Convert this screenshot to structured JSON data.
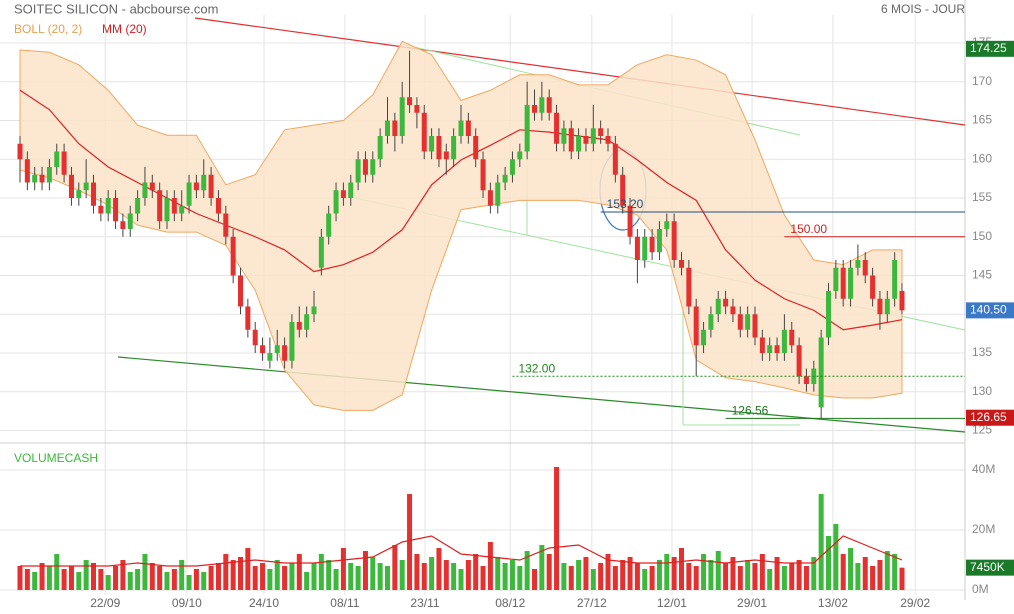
{
  "chart_data": {
    "type": "candlestick",
    "title": "SOITEC SILICON - abcbourse.com",
    "period": "6 MOIS - JOUR",
    "indicator_labels": [
      "BOLL (20, 2)",
      "MM (20)"
    ],
    "volume_title": "VOLUMECASH",
    "colors": {
      "up": "#3cb83c",
      "down": "#e53030",
      "band": "#fbe3c8",
      "band_edge": "#f0a860",
      "ma": "#e02020"
    },
    "ylim": [
      125,
      175
    ],
    "yticks": [
      125,
      130,
      135,
      140,
      145,
      150,
      155,
      160,
      165,
      170,
      175
    ],
    "xticks": [
      {
        "value": 11.6,
        "label": "22/09"
      },
      {
        "value": 22.7,
        "label": "09/10"
      },
      {
        "value": 33.2,
        "label": "24/10"
      },
      {
        "value": 44.2,
        "label": "08/11"
      },
      {
        "value": 55.1,
        "label": "23/11"
      },
      {
        "value": 66.7,
        "label": "08/12"
      },
      {
        "value": 77.8,
        "label": "27/12"
      },
      {
        "value": 88.7,
        "label": "12/01"
      },
      {
        "value": 99.6,
        "label": "29/01"
      },
      {
        "value": 110.6,
        "label": "13/02"
      },
      {
        "value": 121.8,
        "label": "29/02"
      }
    ],
    "ohlc": [
      [
        162,
        163,
        157,
        160
      ],
      [
        160,
        161,
        156,
        157
      ],
      [
        157,
        159,
        156,
        158
      ],
      [
        158,
        159,
        156,
        157
      ],
      [
        157,
        160,
        156,
        159
      ],
      [
        159,
        162,
        158,
        161
      ],
      [
        161,
        162,
        157,
        158
      ],
      [
        158,
        159,
        154,
        155
      ],
      [
        155,
        157,
        154,
        156
      ],
      [
        156,
        160,
        155,
        157
      ],
      [
        157,
        158,
        153,
        154
      ],
      [
        154,
        155,
        152,
        153
      ],
      [
        153,
        156,
        152,
        155
      ],
      [
        155,
        156,
        151,
        152
      ],
      [
        152,
        153,
        150,
        151
      ],
      [
        151,
        154,
        150,
        153
      ],
      [
        153,
        156,
        152,
        155
      ],
      [
        155,
        159,
        154,
        157
      ],
      [
        157,
        158,
        155,
        156
      ],
      [
        156,
        157,
        151,
        152
      ],
      [
        152,
        156,
        151,
        155
      ],
      [
        155,
        156,
        152,
        153
      ],
      [
        153,
        156,
        152,
        154
      ],
      [
        154,
        158,
        153,
        157
      ],
      [
        157,
        158,
        155,
        156
      ],
      [
        156,
        160,
        155,
        158
      ],
      [
        158,
        159,
        154,
        155
      ],
      [
        155,
        156,
        152,
        153
      ],
      [
        153,
        154,
        149,
        150
      ],
      [
        150,
        151,
        144,
        145
      ],
      [
        145,
        146,
        140,
        141
      ],
      [
        141,
        142,
        137,
        138
      ],
      [
        138,
        139,
        135,
        136
      ],
      [
        136,
        137,
        134,
        135
      ],
      [
        134,
        137,
        133,
        135
      ],
      [
        135,
        138,
        134,
        136
      ],
      [
        136,
        137,
        133,
        134
      ],
      [
        134,
        140,
        133,
        139
      ],
      [
        139,
        141,
        137,
        138
      ],
      [
        138,
        141,
        137,
        140
      ],
      [
        140,
        143,
        139,
        141
      ],
      [
        146,
        151,
        145,
        150
      ],
      [
        150,
        154,
        149,
        153
      ],
      [
        153,
        157,
        152,
        156
      ],
      [
        156,
        157,
        154,
        155
      ],
      [
        155,
        158,
        154,
        157
      ],
      [
        157,
        161,
        156,
        160
      ],
      [
        160,
        161,
        157,
        158
      ],
      [
        158,
        161,
        157,
        160
      ],
      [
        160,
        164,
        159,
        163
      ],
      [
        163,
        168,
        162,
        165
      ],
      [
        165,
        166,
        161,
        163
      ],
      [
        163,
        170,
        162,
        168
      ],
      [
        168,
        174,
        166,
        167
      ],
      [
        167,
        168,
        164,
        166
      ],
      [
        166,
        167,
        160,
        161
      ],
      [
        161,
        164,
        160,
        163
      ],
      [
        163,
        164,
        159,
        160
      ],
      [
        161,
        162,
        158,
        160
      ],
      [
        160,
        164,
        159,
        163
      ],
      [
        163,
        167,
        162,
        165
      ],
      [
        165,
        166,
        162,
        163
      ],
      [
        163,
        164,
        159,
        160
      ],
      [
        160,
        161,
        155,
        156
      ],
      [
        156,
        157,
        153,
        154
      ],
      [
        154,
        158,
        153,
        157
      ],
      [
        157,
        159,
        156,
        158
      ],
      [
        158,
        161,
        157,
        160
      ],
      [
        160,
        162,
        159,
        161
      ],
      [
        161,
        170,
        160,
        167
      ],
      [
        167,
        169,
        165,
        166
      ],
      [
        166,
        170,
        165,
        168
      ],
      [
        168,
        169,
        165,
        166
      ],
      [
        166,
        167,
        161,
        162
      ],
      [
        162,
        165,
        161,
        164
      ],
      [
        164,
        165,
        160,
        161
      ],
      [
        161,
        164,
        160,
        163
      ],
      [
        163,
        164,
        161,
        162
      ],
      [
        162,
        167,
        161,
        164
      ],
      [
        164,
        165,
        162,
        163
      ],
      [
        163,
        164,
        161,
        162
      ],
      [
        162,
        163,
        157,
        158
      ],
      [
        158,
        159,
        153,
        154
      ],
      [
        154,
        155,
        149,
        150
      ],
      [
        150,
        151,
        144,
        147
      ],
      [
        147,
        151,
        146,
        150
      ],
      [
        150,
        151,
        147,
        148
      ],
      [
        148,
        152,
        147,
        151
      ],
      [
        151,
        153,
        150,
        152
      ],
      [
        152,
        153,
        146,
        147
      ],
      [
        147,
        148,
        145,
        146
      ],
      [
        146,
        147,
        140,
        141
      ],
      [
        141,
        142,
        132,
        136
      ],
      [
        136,
        139,
        135,
        138
      ],
      [
        138,
        141,
        137,
        140
      ],
      [
        140,
        143,
        139,
        142
      ],
      [
        142,
        143,
        140,
        141
      ],
      [
        141,
        142,
        139,
        140
      ],
      [
        140,
        141,
        137,
        138
      ],
      [
        138,
        141,
        137,
        140
      ],
      [
        140,
        141,
        136,
        137
      ],
      [
        137,
        138,
        134,
        135
      ],
      [
        135,
        137,
        134,
        136
      ],
      [
        136,
        137,
        134,
        135
      ],
      [
        135,
        140,
        134,
        138
      ],
      [
        138,
        139,
        135,
        136
      ],
      [
        136,
        137,
        131,
        132
      ],
      [
        132,
        133,
        130,
        131
      ],
      [
        131,
        134,
        130,
        133
      ],
      [
        128,
        138,
        126.56,
        137
      ],
      [
        137,
        144,
        136,
        143
      ],
      [
        143,
        147,
        142,
        146
      ],
      [
        146,
        147,
        141,
        142
      ],
      [
        142,
        147,
        141,
        146
      ],
      [
        146,
        149,
        145,
        147
      ],
      [
        147,
        148,
        144,
        145
      ],
      [
        145,
        146,
        141,
        142
      ],
      [
        142,
        143,
        138,
        140
      ],
      [
        140,
        143,
        139,
        142
      ],
      [
        142,
        148,
        141,
        147
      ],
      [
        143,
        144,
        140,
        140.5
      ]
    ],
    "band_x": [
      0,
      4,
      8,
      12,
      16,
      20,
      24,
      28,
      32,
      36,
      40,
      44,
      48,
      52,
      56,
      60,
      64,
      68,
      72,
      76,
      80,
      84,
      88,
      92,
      96,
      100,
      104,
      108,
      112,
      116,
      120
    ],
    "band_upper": [
      174.1,
      173.8,
      172.2,
      168.9,
      164.4,
      163.1,
      163.1,
      156.7,
      158,
      163.8,
      164.4,
      165,
      168.3,
      175.2,
      173.5,
      167.6,
      168.9,
      170.9,
      170.9,
      169.6,
      169.6,
      172.2,
      173.5,
      172.8,
      170.9,
      162.5,
      152.8,
      147,
      146.4,
      148.3,
      148.3
    ],
    "band_lower": [
      158.6,
      157.6,
      156,
      154.1,
      151.5,
      150.6,
      150.6,
      148.9,
      143.1,
      132.8,
      128.3,
      127.6,
      127.6,
      129.6,
      143.1,
      153.5,
      154.1,
      154.7,
      154.7,
      154.7,
      154.1,
      152.8,
      148.3,
      134.1,
      131.8,
      131.3,
      130.5,
      129.6,
      129.2,
      129.2,
      129.8
    ],
    "ma": [
      168.9,
      166.4,
      162,
      159,
      157,
      155,
      153,
      151.5,
      150,
      148.3,
      145.5,
      146.4,
      148,
      150.9,
      156.7,
      159.9,
      161.8,
      163.8,
      163.5,
      163,
      162.5,
      159.9,
      157,
      154.7,
      148.3,
      144.4,
      142,
      140.5,
      138,
      138.6,
      139.3
    ],
    "price_markers": [
      {
        "value": 174.25,
        "color": "#1a7a2a"
      },
      {
        "value": {
          "value": 140.5,
          "label": "140.50"
        },
        "color": "#3a78c8"
      },
      {
        "value": 126.65,
        "color": "#c81818"
      }
    ],
    "levels": [
      {
        "value": {
          "value": 150,
          "label": "150.00"
        },
        "color": "#d02020",
        "from": 104
      },
      {
        "value": {
          "value": 132,
          "label": "132.00"
        },
        "color": "#1a8a1a",
        "from": 67
      },
      {
        "value": 126.56,
        "color": "#1a7a1a",
        "from": 96
      },
      {
        "value": {
          "value": 153.2,
          "label": "153.20"
        },
        "color": "#1f4f7f",
        "from": 79
      }
    ],
    "volume": {
      "values": [
        8,
        7,
        6,
        9,
        8,
        12,
        7,
        8,
        6,
        10,
        9,
        7,
        5,
        8,
        10,
        6,
        7,
        12,
        9,
        8,
        6,
        7,
        10,
        5,
        7,
        6,
        8,
        9,
        12,
        10,
        11,
        14,
        8,
        9,
        7,
        10,
        8,
        9,
        12,
        6,
        9,
        12,
        10,
        7,
        14,
        9,
        8,
        13,
        11,
        9,
        8,
        15,
        10,
        32,
        12,
        9,
        11,
        14,
        10,
        9,
        7,
        10,
        12,
        8,
        16,
        11,
        9,
        10,
        8,
        13,
        7,
        15,
        12,
        41,
        9,
        8,
        10,
        11,
        7,
        9,
        12,
        8,
        10,
        11,
        9,
        7,
        8,
        10,
        12,
        11,
        14,
        9,
        8,
        12,
        10,
        13,
        9,
        11,
        8,
        10,
        9,
        12,
        7,
        11,
        8,
        9,
        10,
        8,
        11,
        32,
        18,
        22,
        12,
        14,
        9,
        11,
        8,
        10,
        13,
        12,
        7.45
      ],
      "last_label": "7450K",
      "ma": [
        8,
        8,
        8,
        8,
        9,
        8,
        8,
        9,
        10,
        9,
        9,
        10,
        11,
        16,
        18,
        12,
        11,
        10,
        14,
        15,
        10,
        9,
        9,
        10,
        9,
        10,
        9,
        9,
        18,
        14,
        10
      ],
      "ylim": [
        0,
        47
      ],
      "yticks": [
        {
          "value": 0,
          "label": "0M"
        },
        {
          "value": 20,
          "label": "20M"
        },
        {
          "value": 40,
          "label": "40M"
        }
      ]
    }
  }
}
